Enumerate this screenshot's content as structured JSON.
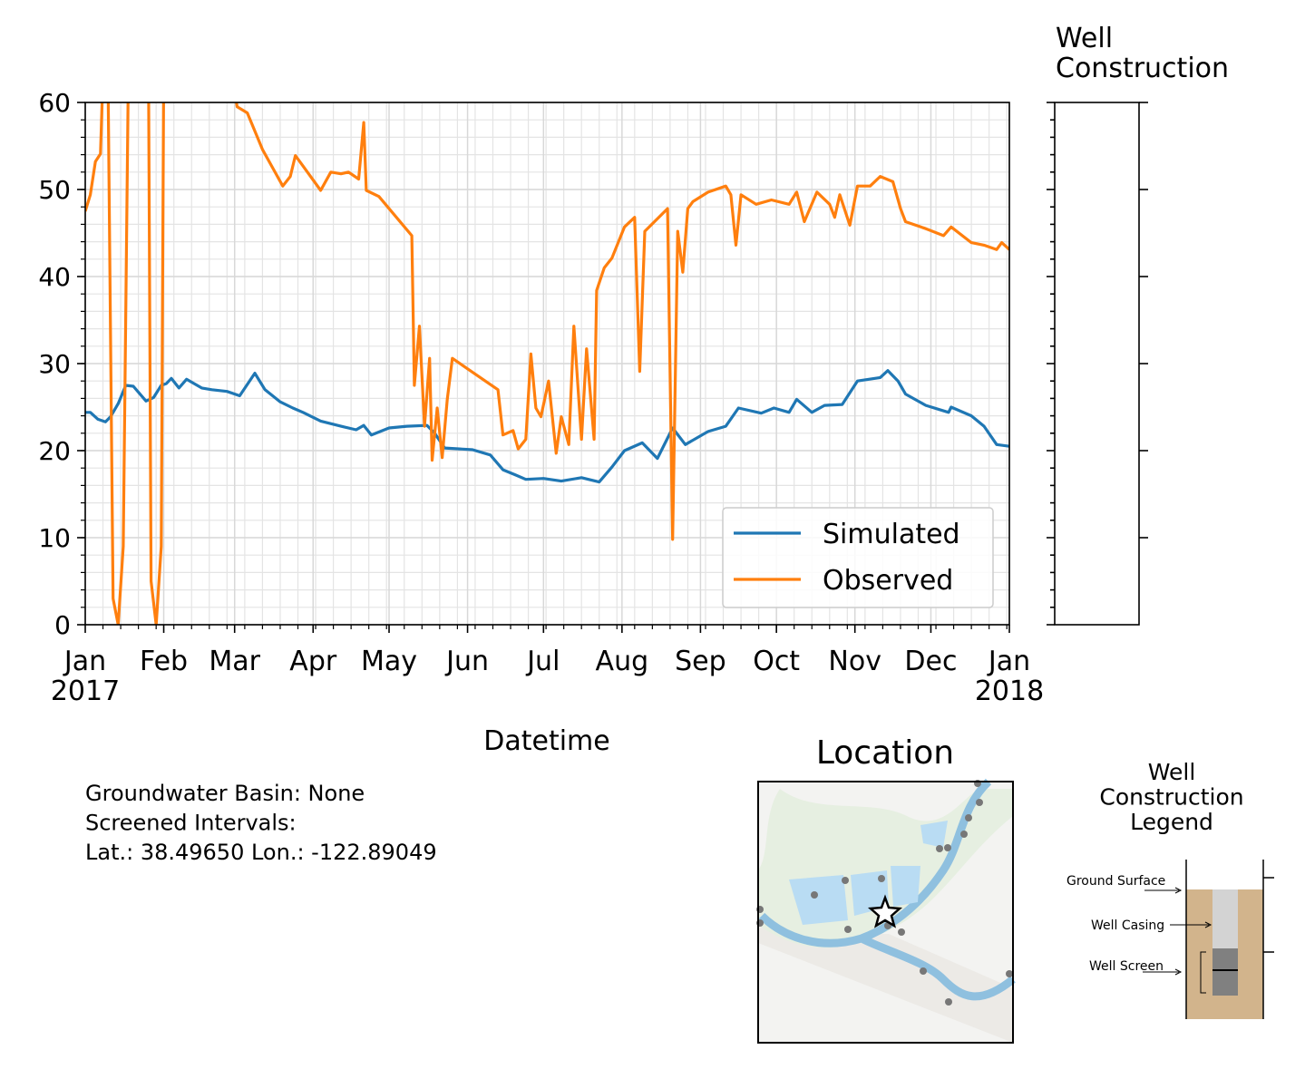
{
  "chart_data": {
    "type": "line",
    "xlabel": "Datetime",
    "xlim": [
      0,
      365
    ],
    "ylim": [
      0,
      60
    ],
    "xticks": [
      {
        "value": 0,
        "label": "Jan\n2017"
      },
      {
        "value": 31,
        "label": "Feb"
      },
      {
        "value": 59,
        "label": "Mar"
      },
      {
        "value": 90,
        "label": "Apr"
      },
      {
        "value": 120,
        "label": "May"
      },
      {
        "value": 151,
        "label": "Jun"
      },
      {
        "value": 181,
        "label": "Jul"
      },
      {
        "value": 212,
        "label": "Aug"
      },
      {
        "value": 243,
        "label": "Sep"
      },
      {
        "value": 273,
        "label": "Oct"
      },
      {
        "value": 304,
        "label": "Nov"
      },
      {
        "value": 334,
        "label": "Dec"
      },
      {
        "value": 365,
        "label": "Jan\n2018"
      }
    ],
    "yticks": [
      0,
      10,
      20,
      30,
      40,
      50,
      60
    ],
    "grid": true,
    "legend_loc": "lower right",
    "series": [
      {
        "name": "Simulated",
        "color": "#1f77b4",
        "x": [
          0,
          2,
          5,
          8,
          10,
          13,
          16,
          19,
          24,
          27,
          30,
          32,
          34,
          37,
          40,
          46,
          50,
          56,
          61,
          67,
          71,
          77,
          82,
          86,
          93,
          101,
          107,
          110,
          113,
          120,
          127,
          135,
          138,
          142,
          153,
          160,
          165,
          170,
          174,
          181,
          188,
          196,
          203,
          208,
          213,
          220,
          226,
          232,
          237,
          246,
          253,
          258,
          267,
          272,
          278,
          281,
          287,
          292,
          299,
          305,
          314,
          317,
          321,
          324,
          332,
          341,
          342,
          350,
          355,
          360,
          365
        ],
        "values": [
          24.4,
          24.4,
          23.6,
          23.3,
          23.9,
          25.4,
          27.5,
          27.4,
          25.7,
          26.1,
          27.5,
          27.7,
          28.3,
          27.2,
          28.2,
          27.2,
          27.0,
          26.8,
          26.3,
          28.9,
          27.0,
          25.6,
          24.9,
          24.4,
          23.4,
          22.8,
          22.4,
          22.9,
          21.8,
          22.6,
          22.8,
          22.9,
          22.0,
          20.3,
          20.1,
          19.5,
          17.8,
          17.2,
          16.7,
          16.8,
          16.5,
          16.9,
          16.4,
          18.1,
          20.0,
          20.9,
          19.1,
          22.6,
          20.7,
          22.2,
          22.8,
          24.9,
          24.3,
          24.9,
          24.4,
          25.9,
          24.4,
          25.2,
          25.3,
          28.0,
          28.4,
          29.2,
          28.0,
          26.5,
          25.2,
          24.4,
          25.0,
          24.0,
          22.8,
          20.7,
          20.5
        ]
      },
      {
        "name": "Observed",
        "color": "#ff7f0e",
        "x": [
          0,
          2,
          4,
          6,
          7,
          9,
          11,
          13,
          15,
          17,
          25,
          26,
          28,
          30,
          31,
          58,
          60,
          64,
          70,
          74,
          78,
          81,
          83,
          86,
          93,
          97,
          101,
          104,
          108,
          110,
          111,
          116,
          129,
          130,
          132,
          134,
          136,
          137,
          139,
          141,
          143,
          145,
          163,
          165,
          169,
          171,
          174,
          176,
          178,
          180,
          183,
          186,
          188,
          191,
          193,
          196,
          198,
          201,
          202,
          205,
          208,
          213,
          217,
          219,
          221,
          230,
          232,
          234,
          236,
          238,
          240,
          246,
          253,
          255,
          257,
          259,
          265,
          271,
          278,
          281,
          284,
          289,
          294,
          296,
          298,
          302,
          305,
          310,
          314,
          319,
          322,
          324,
          332,
          339,
          342,
          350,
          355,
          360,
          362,
          365
        ],
        "values": [
          47.5,
          49.4,
          53.2,
          54.1,
          63,
          63,
          3,
          0,
          9,
          63,
          63,
          5,
          0,
          9,
          63,
          63,
          59.5,
          58.8,
          54.6,
          52.5,
          50.4,
          51.5,
          53.9,
          52.7,
          49.9,
          52.0,
          51.8,
          52.0,
          51.2,
          57.7,
          49.9,
          49.2,
          44.7,
          27.5,
          34.3,
          22.8,
          30.6,
          18.9,
          24.9,
          19.2,
          25.9,
          30.6,
          27.0,
          21.8,
          22.3,
          20.2,
          21.3,
          31.1,
          24.9,
          23.9,
          28.0,
          19.7,
          23.9,
          20.7,
          34.3,
          21.3,
          31.7,
          21.3,
          38.4,
          41.0,
          42.1,
          45.7,
          46.8,
          29.1,
          45.2,
          47.8,
          9.8,
          45.2,
          40.5,
          47.8,
          48.6,
          49.7,
          50.4,
          49.4,
          43.6,
          49.4,
          48.3,
          48.8,
          48.3,
          49.7,
          46.3,
          49.7,
          48.3,
          46.8,
          49.4,
          45.9,
          50.4,
          50.4,
          51.5,
          50.9,
          47.8,
          46.3,
          45.5,
          44.7,
          45.7,
          43.9,
          43.6,
          43.1,
          43.9,
          43.1
        ]
      }
    ]
  },
  "well_construction": {
    "title": "Well Construction"
  },
  "info": {
    "lines": [
      "Groundwater Basin: None",
      "Screened Intervals:",
      "Lat.: 38.49650 Lon.: -122.89049"
    ]
  },
  "location": {
    "title": "Location"
  },
  "construction_legend": {
    "title": "Well Construction Legend",
    "labels": [
      "Ground Surface",
      "Well Casing",
      "Well Screen"
    ]
  }
}
